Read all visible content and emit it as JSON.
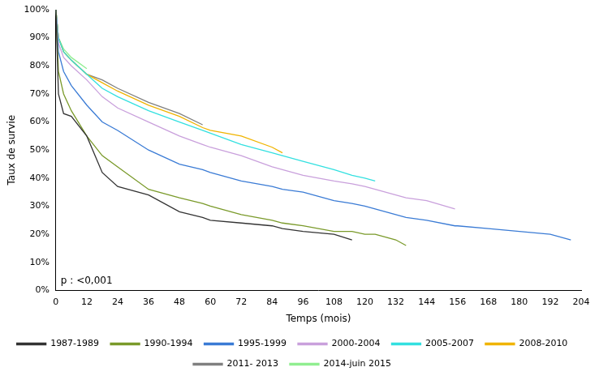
{
  "chart_data": {
    "type": "line",
    "x_label": "Temps (mois)",
    "y_label": "Taux de survie",
    "annotation": "p : <0,001",
    "x": [
      0,
      1,
      3,
      6,
      12,
      18,
      24,
      36,
      48,
      57,
      60,
      72,
      84,
      88,
      96,
      108,
      115,
      120,
      124,
      132,
      136,
      144,
      155,
      156,
      168,
      180,
      192,
      200
    ],
    "xlim": [
      0,
      204
    ],
    "xticks": [
      0,
      12,
      24,
      36,
      48,
      60,
      72,
      84,
      96,
      108,
      120,
      132,
      144,
      156,
      168,
      180,
      192,
      204
    ],
    "ylim": [
      0,
      100
    ],
    "yticks": [
      {
        "value": 0,
        "label": "0%"
      },
      {
        "value": 10,
        "label": "10%"
      },
      {
        "value": 20,
        "label": "20%"
      },
      {
        "value": 30,
        "label": "30%"
      },
      {
        "value": 40,
        "label": "40%"
      },
      {
        "value": 50,
        "label": "50%"
      },
      {
        "value": 60,
        "label": "60%"
      },
      {
        "value": 70,
        "label": "70%"
      },
      {
        "value": 80,
        "label": "80%"
      },
      {
        "value": 90,
        "label": "90%"
      },
      {
        "value": 100,
        "label": "100%"
      }
    ],
    "grid": false,
    "legend": "bottom",
    "series": [
      {
        "name": "1987-1989",
        "color": "#333333",
        "values": [
          100,
          70,
          63,
          62,
          55,
          42,
          37,
          34,
          28,
          26,
          25,
          24,
          23,
          22,
          21,
          20,
          18,
          null,
          null,
          null,
          null,
          null,
          null,
          null,
          null,
          null,
          null,
          null
        ]
      },
      {
        "name": "1990-1994",
        "color": "#7a9a2a",
        "values": [
          100,
          78,
          70,
          64,
          55,
          48,
          44,
          36,
          33,
          31,
          30,
          27,
          25,
          24,
          23,
          21,
          21,
          20,
          20,
          18,
          16,
          null,
          null,
          null,
          null,
          null,
          null,
          null
        ]
      },
      {
        "name": "1995-1999",
        "color": "#3a7bd5",
        "values": [
          100,
          85,
          78,
          73,
          66,
          60,
          57,
          50,
          45,
          43,
          42,
          39,
          37,
          36,
          35,
          32,
          31,
          30,
          29,
          27,
          26,
          25,
          23,
          23,
          22,
          21,
          20,
          18
        ]
      },
      {
        "name": "2000-2004",
        "color": "#c9a0dc",
        "values": [
          100,
          88,
          83,
          80,
          75,
          69,
          65,
          60,
          55,
          52,
          51,
          48,
          44,
          43,
          41,
          39,
          38,
          37,
          36,
          34,
          33,
          32,
          29,
          null,
          null,
          null,
          null,
          null
        ]
      },
      {
        "name": "2005-2007",
        "color": "#33e0e0",
        "values": [
          100,
          90,
          85,
          82,
          77,
          72,
          69,
          64,
          60,
          57,
          56,
          52,
          49,
          48,
          46,
          43,
          41,
          40,
          39,
          null,
          null,
          null,
          null,
          null,
          null,
          null,
          null,
          null
        ]
      },
      {
        "name": "2008-2010",
        "color": "#f0b400",
        "values": [
          100,
          90,
          85,
          82,
          77,
          74,
          71,
          66,
          62,
          58,
          57,
          55,
          51,
          49,
          null,
          null,
          null,
          null,
          null,
          null,
          null,
          null,
          null,
          null,
          null,
          null,
          null,
          null
        ]
      },
      {
        "name": "2011- 2013",
        "color": "#808080",
        "values": [
          100,
          90,
          85,
          82,
          77,
          75,
          72,
          67,
          63,
          59,
          null,
          null,
          null,
          null,
          null,
          null,
          null,
          null,
          null,
          null,
          null,
          null,
          null,
          null,
          null,
          null,
          null,
          null
        ]
      },
      {
        "name": "2014-juin 2015",
        "color": "#90ee90",
        "values": [
          100,
          90,
          86,
          83,
          79,
          null,
          null,
          null,
          null,
          null,
          null,
          null,
          null,
          null,
          null,
          null,
          null,
          null,
          null,
          null,
          null,
          null,
          null,
          null,
          null,
          null,
          null,
          null
        ]
      }
    ]
  }
}
